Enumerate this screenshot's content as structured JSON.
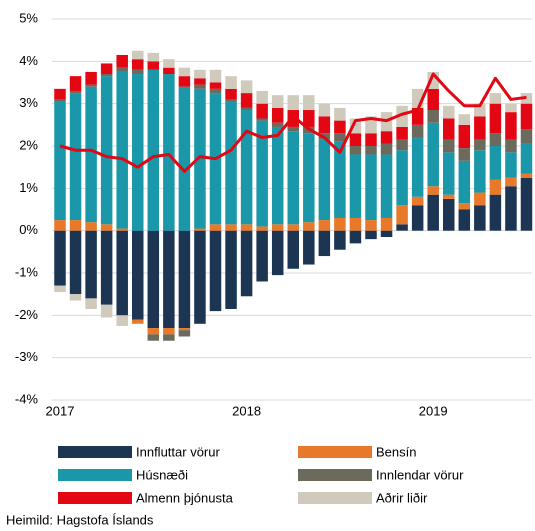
{
  "chart_data": {
    "type": "stacked_bar_line",
    "categories": [
      "2017",
      null,
      null,
      null,
      null,
      null,
      null,
      null,
      null,
      null,
      null,
      null,
      "2018",
      null,
      null,
      null,
      null,
      null,
      null,
      null,
      null,
      null,
      null,
      null,
      "2019",
      null,
      null,
      null,
      null,
      null,
      null
    ],
    "series": [
      {
        "name": "Innfluttar vörur",
        "color": "#1c3553",
        "values": [
          -1.3,
          -1.5,
          -1.6,
          -1.75,
          -2.0,
          -2.1,
          -2.3,
          -2.3,
          -2.3,
          -2.2,
          -1.9,
          -1.85,
          -1.55,
          -1.2,
          -1.05,
          -0.9,
          -0.8,
          -0.6,
          -0.45,
          -0.3,
          -0.2,
          -0.15,
          0.15,
          0.6,
          0.85,
          0.75,
          0.5,
          0.6,
          0.85,
          1.05,
          1.25
        ]
      },
      {
        "name": "Bensín",
        "color": "#e8792a",
        "values": [
          0.25,
          0.25,
          0.2,
          0.15,
          0.05,
          -0.1,
          -0.15,
          -0.15,
          -0.05,
          0.05,
          0.15,
          0.15,
          0.15,
          0.1,
          0.15,
          0.15,
          0.2,
          0.25,
          0.3,
          0.3,
          0.25,
          0.3,
          0.45,
          0.2,
          0.2,
          0.1,
          0.15,
          0.3,
          0.35,
          0.2,
          0.1
        ]
      },
      {
        "name": "Húsnæði",
        "color": "#1a97a8",
        "values": [
          2.8,
          3.0,
          3.2,
          3.5,
          3.7,
          3.7,
          3.8,
          3.7,
          3.4,
          3.3,
          3.1,
          2.9,
          2.7,
          2.5,
          2.3,
          2.2,
          2.1,
          1.9,
          1.8,
          1.5,
          1.55,
          1.5,
          1.3,
          1.4,
          1.5,
          1.0,
          1.0,
          1.0,
          0.8,
          0.6,
          0.7
        ]
      },
      {
        "name": "Innlendar vörur",
        "color": "#6b6a5c",
        "values": [
          0.05,
          0.05,
          0.05,
          0.05,
          0.1,
          0.1,
          -0.15,
          -0.15,
          -0.15,
          0.1,
          0.1,
          0.05,
          0.05,
          0.05,
          0.1,
          0.1,
          0.15,
          0.15,
          0.2,
          0.2,
          0.2,
          0.25,
          0.25,
          0.3,
          0.3,
          0.3,
          0.3,
          0.25,
          0.3,
          0.3,
          0.35
        ]
      },
      {
        "name": "Almenn þjónusta",
        "color": "#e30613",
        "values": [
          0.25,
          0.35,
          0.3,
          0.25,
          0.3,
          0.25,
          0.2,
          0.15,
          0.25,
          0.15,
          0.15,
          0.25,
          0.35,
          0.35,
          0.35,
          0.4,
          0.4,
          0.4,
          0.3,
          0.3,
          0.3,
          0.3,
          0.3,
          0.4,
          0.5,
          0.5,
          0.55,
          0.55,
          0.7,
          0.65,
          0.6
        ]
      },
      {
        "name": "Aðrir liðir",
        "color": "#cfcabb",
        "values": [
          -0.15,
          -0.15,
          -0.25,
          -0.3,
          -0.25,
          0.2,
          0.2,
          0.2,
          0.2,
          0.2,
          0.3,
          0.3,
          0.3,
          0.3,
          0.3,
          0.35,
          0.35,
          0.3,
          0.3,
          0.35,
          0.4,
          0.45,
          0.5,
          0.45,
          0.4,
          0.3,
          0.25,
          0.3,
          0.25,
          0.2,
          0.25
        ]
      }
    ],
    "line": {
      "color": "#e30613",
      "values": [
        2.0,
        1.9,
        1.9,
        1.75,
        1.7,
        1.5,
        1.75,
        1.8,
        1.4,
        1.75,
        1.7,
        1.9,
        2.35,
        2.2,
        2.25,
        2.7,
        2.4,
        2.2,
        1.85,
        2.6,
        2.65,
        2.6,
        2.75,
        2.85,
        3.7,
        3.3,
        2.95,
        2.95,
        3.6,
        3.1,
        3.15
      ]
    },
    "ylim": [
      -4,
      5
    ],
    "yticks": [
      {
        "value": -4,
        "label": "-4%"
      },
      {
        "value": -3,
        "label": "-3%"
      },
      {
        "value": -2,
        "label": "-2%"
      },
      {
        "value": -1,
        "label": "-1%"
      },
      {
        "value": 0,
        "label": "0%"
      },
      {
        "value": 1,
        "label": "1%"
      },
      {
        "value": 2,
        "label": "2%"
      },
      {
        "value": 3,
        "label": "3%"
      },
      {
        "value": 4,
        "label": "4%"
      },
      {
        "value": 5,
        "label": "5%"
      }
    ],
    "grid": true,
    "source": "Heimild: Hagstofa Íslands"
  }
}
